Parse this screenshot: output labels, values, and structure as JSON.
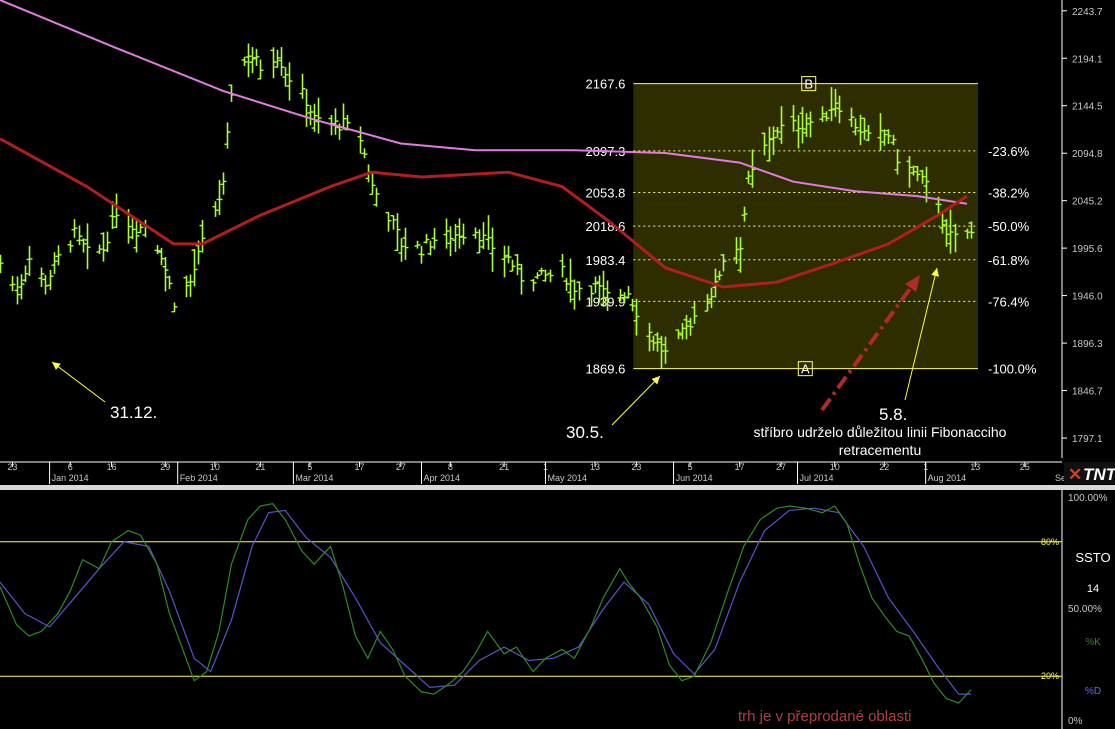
{
  "colors": {
    "background": "#000000",
    "price_bars": "#aaff33",
    "ma_fast": "#b01e1e",
    "ma_slow": "#e27be2",
    "fib_fill": "#2d2d00",
    "fib_lines": "#ffff66",
    "grid_text": "#c8c8c8",
    "k_line": "#2a8c2a",
    "d_line": "#5555cc",
    "annotation_yellow": "#ffff33",
    "annotation_red": "#b02a2a",
    "oversold_text": "#b04040"
  },
  "price_axis": {
    "ticks": [
      "2243.7",
      "2194.1",
      "2144.5",
      "2094.8",
      "2045.2",
      "1995.6",
      "1946.0",
      "1896.3",
      "1846.7",
      "1797.1"
    ]
  },
  "date_axis": {
    "days": [
      "23",
      "6",
      "16",
      "29",
      "10",
      "21",
      "5",
      "17",
      "27",
      "8",
      "21",
      "1",
      "13",
      "23",
      "5",
      "17",
      "27",
      "10",
      "22",
      "1",
      "13",
      "25"
    ],
    "months": [
      "Jan 2014",
      "Feb 2014",
      "Mar 2014",
      "Apr 2014",
      "May 2014",
      "Jun 2014",
      "Jul 2014",
      "Aug 2014"
    ],
    "cut_label": "Se"
  },
  "logo_text": "TNT",
  "fibonacci": {
    "point_high_label": "B",
    "point_low_label": "A",
    "levels": [
      {
        "price": "2167.6",
        "pct": ""
      },
      {
        "price": "2097.3",
        "pct": "-23.6%"
      },
      {
        "price": "2053.8",
        "pct": "-38.2%"
      },
      {
        "price": "2018.6",
        "pct": "-50.0%"
      },
      {
        "price": "1983.4",
        "pct": "-61.8%"
      },
      {
        "price": "1939.9",
        "pct": "-76.4%"
      },
      {
        "price": "1869.6",
        "pct": "-100.0%"
      }
    ]
  },
  "annotations": {
    "date_1": "31.12.",
    "date_2": "30.5.",
    "date_3": "5.8.",
    "comment_line1": "stříbro udrželo důležitou linii Fibonacciho",
    "comment_line2": "retracementu",
    "oversold": "trh je v přeprodané oblasti"
  },
  "oscillator": {
    "name": "SSTO",
    "period": "14",
    "k_label": "%K",
    "d_label": "%D",
    "axis": [
      "100.00%",
      "50.00%",
      "0%"
    ],
    "level_labels": [
      "80%",
      "20%"
    ]
  },
  "chart_data": [
    {
      "type": "ohlc",
      "instrument_note": "",
      "y_range": [
        1772,
        2255
      ],
      "x_range": [
        "2013-12-20",
        "2014-09-03"
      ],
      "date_axis": "daily, Dec 2013 - Aug 2014",
      "fib_retracement": {
        "A": {
          "date": "2014-05-30",
          "value": 1869.6
        },
        "B": {
          "date": "2014-07-10",
          "value": 2167.6
        },
        "levels": [
          2167.6,
          2097.3,
          2053.8,
          2018.6,
          1983.4,
          1939.9,
          1869.6
        ]
      },
      "close_path": [
        [
          "2013-12-20",
          1980
        ],
        [
          "2013-12-24",
          1950
        ],
        [
          "2013-12-27",
          1985
        ],
        [
          "2013-12-31",
          1960
        ],
        [
          "2014-01-03",
          1985
        ],
        [
          "2014-01-07",
          2010
        ],
        [
          "2014-01-10",
          1990
        ],
        [
          "2014-01-14",
          1995
        ],
        [
          "2014-01-17",
          2035
        ],
        [
          "2014-01-22",
          2015
        ],
        [
          "2014-01-24",
          2020
        ],
        [
          "2014-01-28",
          1990
        ],
        [
          "2014-01-31",
          1940
        ],
        [
          "2014-02-04",
          1960
        ],
        [
          "2014-02-07",
          2000
        ],
        [
          "2014-02-12",
          2060
        ],
        [
          "2014-02-14",
          2160
        ],
        [
          "2014-02-18",
          2200
        ],
        [
          "2014-02-21",
          2185
        ],
        [
          "2014-02-25",
          2200
        ],
        [
          "2014-02-27",
          2180
        ],
        [
          "2014-03-04",
          2150
        ],
        [
          "2014-03-06",
          2130
        ],
        [
          "2014-03-10",
          2125
        ],
        [
          "2014-03-13",
          2125
        ],
        [
          "2014-03-17",
          2110
        ],
        [
          "2014-03-20",
          2060
        ],
        [
          "2014-03-24",
          2030
        ],
        [
          "2014-03-27",
          2000
        ],
        [
          "2014-04-01",
          1995
        ],
        [
          "2014-04-04",
          2005
        ],
        [
          "2014-04-09",
          2010
        ],
        [
          "2014-04-14",
          2015
        ],
        [
          "2014-04-17",
          2000
        ],
        [
          "2014-04-22",
          1985
        ],
        [
          "2014-04-25",
          1965
        ],
        [
          "2014-04-30",
          1965
        ],
        [
          "2014-05-05",
          1970
        ],
        [
          "2014-05-08",
          1955
        ],
        [
          "2014-05-13",
          1955
        ],
        [
          "2014-05-16",
          1945
        ],
        [
          "2014-05-21",
          1950
        ],
        [
          "2014-05-23",
          1930
        ],
        [
          "2014-05-27",
          1900
        ],
        [
          "2014-05-30",
          1885
        ],
        [
          "2014-06-03",
          1905
        ],
        [
          "2014-06-06",
          1925
        ],
        [
          "2014-06-11",
          1955
        ],
        [
          "2014-06-13",
          1985
        ],
        [
          "2014-06-17",
          2000
        ],
        [
          "2014-06-19",
          2065
        ],
        [
          "2014-06-23",
          2100
        ],
        [
          "2014-06-26",
          2120
        ],
        [
          "2014-07-01",
          2125
        ],
        [
          "2014-07-07",
          2130
        ],
        [
          "2014-07-10",
          2150
        ],
        [
          "2014-07-15",
          2125
        ],
        [
          "2014-07-18",
          2110
        ],
        [
          "2014-07-23",
          2115
        ],
        [
          "2014-07-25",
          2090
        ],
        [
          "2014-07-30",
          2070
        ],
        [
          "2014-08-04",
          2045
        ],
        [
          "2014-08-06",
          2005
        ],
        [
          "2014-08-08",
          2010
        ]
      ],
      "ma_fast_path": [
        [
          "2013-12-20",
          2110
        ],
        [
          "2014-01-10",
          2060
        ],
        [
          "2014-01-31",
          2000
        ],
        [
          "2014-02-07",
          2000
        ],
        [
          "2014-02-21",
          2030
        ],
        [
          "2014-03-10",
          2060
        ],
        [
          "2014-03-20",
          2075
        ],
        [
          "2014-04-01",
          2070
        ],
        [
          "2014-04-22",
          2075
        ],
        [
          "2014-05-05",
          2060
        ],
        [
          "2014-05-16",
          2025
        ],
        [
          "2014-05-30",
          1975
        ],
        [
          "2014-06-13",
          1955
        ],
        [
          "2014-06-26",
          1960
        ],
        [
          "2014-07-10",
          1980
        ],
        [
          "2014-07-23",
          2000
        ],
        [
          "2014-08-04",
          2030
        ],
        [
          "2014-08-11",
          2050
        ]
      ],
      "ma_slow_path": [
        [
          "2013-12-20",
          2255
        ],
        [
          "2014-01-17",
          2205
        ],
        [
          "2014-02-12",
          2160
        ],
        [
          "2014-03-06",
          2130
        ],
        [
          "2014-03-27",
          2105
        ],
        [
          "2014-04-14",
          2098
        ],
        [
          "2014-05-08",
          2098
        ],
        [
          "2014-05-30",
          2095
        ],
        [
          "2014-06-17",
          2085
        ],
        [
          "2014-06-30",
          2065
        ],
        [
          "2014-07-15",
          2055
        ],
        [
          "2014-07-30",
          2050
        ],
        [
          "2014-08-11",
          2042
        ]
      ]
    },
    {
      "type": "line",
      "title": "SSTO",
      "y_range": [
        0,
        100
      ],
      "reference_levels": [
        80,
        20
      ],
      "x_range": [
        "2013-12-20",
        "2014-09-03"
      ],
      "series": [
        {
          "name": "%K",
          "points": [
            [
              "2013-12-20",
              60
            ],
            [
              "2013-12-24",
              43
            ],
            [
              "2013-12-27",
              38
            ],
            [
              "2013-12-30",
              40
            ],
            [
              "2014-01-03",
              48
            ],
            [
              "2014-01-06",
              58
            ],
            [
              "2014-01-09",
              72
            ],
            [
              "2014-01-13",
              68
            ],
            [
              "2014-01-16",
              80
            ],
            [
              "2014-01-20",
              85
            ],
            [
              "2014-01-23",
              83
            ],
            [
              "2014-01-27",
              70
            ],
            [
              "2014-01-30",
              48
            ],
            [
              "2014-02-03",
              28
            ],
            [
              "2014-02-05",
              18
            ],
            [
              "2014-02-08",
              22
            ],
            [
              "2014-02-11",
              40
            ],
            [
              "2014-02-14",
              70
            ],
            [
              "2014-02-18",
              90
            ],
            [
              "2014-02-21",
              96
            ],
            [
              "2014-02-24",
              97
            ],
            [
              "2014-02-27",
              90
            ],
            [
              "2014-03-03",
              76
            ],
            [
              "2014-03-06",
              70
            ],
            [
              "2014-03-10",
              78
            ],
            [
              "2014-03-13",
              60
            ],
            [
              "2014-03-16",
              38
            ],
            [
              "2014-03-19",
              28
            ],
            [
              "2014-03-22",
              40
            ],
            [
              "2014-03-25",
              32
            ],
            [
              "2014-03-28",
              20
            ],
            [
              "2014-04-01",
              13
            ],
            [
              "2014-04-04",
              12
            ],
            [
              "2014-04-08",
              17
            ],
            [
              "2014-04-11",
              22
            ],
            [
              "2014-04-14",
              30
            ],
            [
              "2014-04-17",
              40
            ],
            [
              "2014-04-21",
              30
            ],
            [
              "2014-04-24",
              33
            ],
            [
              "2014-04-28",
              22
            ],
            [
              "2014-05-01",
              28
            ],
            [
              "2014-05-05",
              32
            ],
            [
              "2014-05-08",
              28
            ],
            [
              "2014-05-12",
              42
            ],
            [
              "2014-05-15",
              55
            ],
            [
              "2014-05-19",
              68
            ],
            [
              "2014-05-21",
              62
            ],
            [
              "2014-05-24",
              55
            ],
            [
              "2014-05-28",
              42
            ],
            [
              "2014-05-31",
              25
            ],
            [
              "2014-06-03",
              18
            ],
            [
              "2014-06-06",
              20
            ],
            [
              "2014-06-10",
              35
            ],
            [
              "2014-06-14",
              57
            ],
            [
              "2014-06-18",
              78
            ],
            [
              "2014-06-22",
              90
            ],
            [
              "2014-06-26",
              95
            ],
            [
              "2014-06-29",
              96
            ],
            [
              "2014-07-03",
              95
            ],
            [
              "2014-07-07",
              93
            ],
            [
              "2014-07-10",
              96
            ],
            [
              "2014-07-13",
              88
            ],
            [
              "2014-07-16",
              70
            ],
            [
              "2014-07-19",
              55
            ],
            [
              "2014-07-22",
              47
            ],
            [
              "2014-07-25",
              40
            ],
            [
              "2014-07-28",
              38
            ],
            [
              "2014-07-31",
              28
            ],
            [
              "2014-08-03",
              17
            ],
            [
              "2014-08-06",
              10
            ],
            [
              "2014-08-09",
              8
            ],
            [
              "2014-08-12",
              14
            ]
          ]
        },
        {
          "name": "%D",
          "points": [
            [
              "2013-12-20",
              62
            ],
            [
              "2013-12-26",
              48
            ],
            [
              "2014-01-01",
              42
            ],
            [
              "2014-01-07",
              55
            ],
            [
              "2014-01-13",
              68
            ],
            [
              "2014-01-19",
              80
            ],
            [
              "2014-01-25",
              78
            ],
            [
              "2014-01-30",
              58
            ],
            [
              "2014-02-05",
              28
            ],
            [
              "2014-02-09",
              22
            ],
            [
              "2014-02-14",
              45
            ],
            [
              "2014-02-19",
              78
            ],
            [
              "2014-02-23",
              93
            ],
            [
              "2014-02-27",
              94
            ],
            [
              "2014-03-04",
              82
            ],
            [
              "2014-03-10",
              73
            ],
            [
              "2014-03-16",
              55
            ],
            [
              "2014-03-22",
              35
            ],
            [
              "2014-03-28",
              25
            ],
            [
              "2014-04-03",
              15
            ],
            [
              "2014-04-09",
              16
            ],
            [
              "2014-04-15",
              27
            ],
            [
              "2014-04-21",
              33
            ],
            [
              "2014-04-27",
              27
            ],
            [
              "2014-05-03",
              28
            ],
            [
              "2014-05-09",
              33
            ],
            [
              "2014-05-15",
              50
            ],
            [
              "2014-05-20",
              62
            ],
            [
              "2014-05-26",
              52
            ],
            [
              "2014-06-01",
              30
            ],
            [
              "2014-06-06",
              21
            ],
            [
              "2014-06-11",
              32
            ],
            [
              "2014-06-17",
              62
            ],
            [
              "2014-06-23",
              85
            ],
            [
              "2014-06-29",
              94
            ],
            [
              "2014-07-05",
              95
            ],
            [
              "2014-07-11",
              93
            ],
            [
              "2014-07-17",
              78
            ],
            [
              "2014-07-23",
              55
            ],
            [
              "2014-07-29",
              40
            ],
            [
              "2014-08-04",
              24
            ],
            [
              "2014-08-09",
              12
            ],
            [
              "2014-08-12",
              12
            ]
          ]
        }
      ]
    }
  ]
}
